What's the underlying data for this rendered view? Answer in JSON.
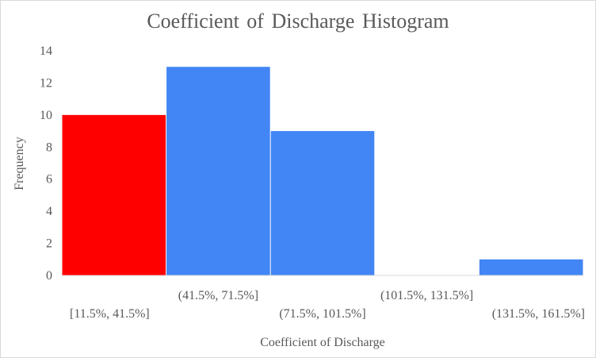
{
  "chart_data": {
    "type": "bar",
    "title": "Coefficient of Discharge Histogram",
    "xlabel": "Coefficient of Discharge",
    "ylabel": "Frequency",
    "categories": [
      "[11.5%, 41.5%]",
      "(41.5%, 71.5%]",
      "(71.5%, 101.5%]",
      "(101.5%, 131.5%]",
      "(131.5%, 161.5%]"
    ],
    "values": [
      10,
      13,
      9,
      0,
      1
    ],
    "bar_colors": [
      "#ff0000",
      "#4285f4",
      "#4285f4",
      "#4285f4",
      "#4285f4"
    ],
    "ylim": [
      0,
      14
    ],
    "yticks": [
      0,
      2,
      4,
      6,
      8,
      10,
      12,
      14
    ],
    "grid": false,
    "legend": "none"
  }
}
